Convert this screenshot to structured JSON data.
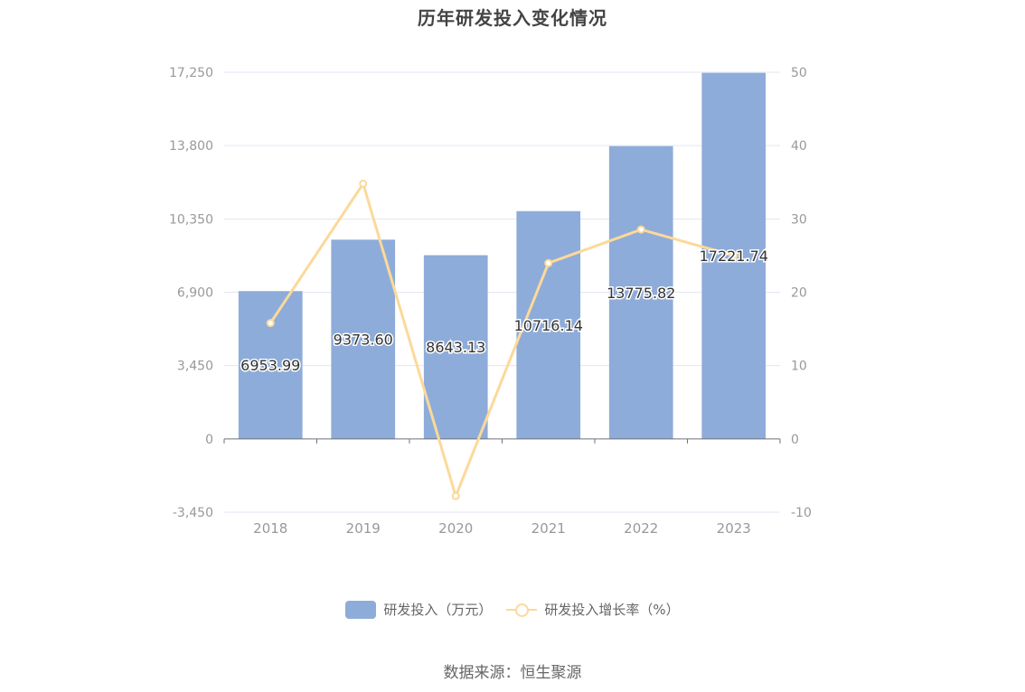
{
  "title": "历年研发投入变化情况",
  "source": "数据来源：恒生聚源",
  "legend": {
    "bar_label": "研发投入（万元）",
    "line_label": "研发投入增长率（%）"
  },
  "colors": {
    "bar": "#8eacd9",
    "line": "#fcd99a",
    "grid": "#e3e6f3",
    "axis": "#6e7079"
  },
  "chart_data": {
    "type": "bar",
    "categories": [
      "2018",
      "2019",
      "2020",
      "2021",
      "2022",
      "2023"
    ],
    "series": [
      {
        "name": "研发投入（万元）",
        "type": "bar",
        "axis": "left",
        "values": [
          6953.99,
          9373.6,
          8643.13,
          10716.14,
          13775.82,
          17221.74
        ],
        "labels": [
          "6953.99",
          "9373.60",
          "8643.13",
          "10716.14",
          "13775.82",
          "17221.74"
        ]
      },
      {
        "name": "研发投入增长率（%）",
        "type": "line",
        "axis": "right",
        "values": [
          15.8,
          34.8,
          -7.8,
          23.98,
          28.55,
          25.01
        ]
      }
    ],
    "y_left": {
      "ylim": [
        -3450,
        17250
      ],
      "ticks": [
        -3450,
        0,
        3450,
        6900,
        10350,
        13800,
        17250
      ],
      "tick_labels": [
        "-3,450",
        "0",
        "3,450",
        "6,900",
        "10,350",
        "13,800",
        "17,250"
      ]
    },
    "y_right": {
      "ylim": [
        -10,
        50
      ],
      "ticks": [
        -10,
        0,
        10,
        20,
        30,
        40,
        50
      ],
      "tick_labels": [
        "-10",
        "0",
        "10",
        "20",
        "30",
        "40",
        "50"
      ]
    },
    "grid": true,
    "legend_position": "bottom"
  }
}
